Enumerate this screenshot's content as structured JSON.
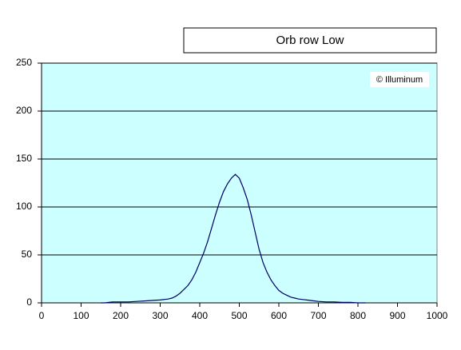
{
  "chart_data": {
    "type": "line",
    "title": "Orb row Low",
    "annotation": "© Illuminum",
    "x": [
      150,
      160,
      170,
      180,
      200,
      220,
      240,
      260,
      280,
      300,
      320,
      330,
      340,
      350,
      360,
      370,
      380,
      390,
      400,
      410,
      420,
      430,
      440,
      450,
      460,
      470,
      480,
      490,
      500,
      510,
      520,
      530,
      540,
      550,
      560,
      570,
      580,
      590,
      600,
      610,
      620,
      630,
      640,
      650,
      660,
      670,
      680,
      690,
      700,
      720,
      740,
      760,
      780,
      800,
      820
    ],
    "values": [
      0,
      0,
      0.5,
      1,
      1,
      1,
      1.5,
      2,
      2.5,
      3,
      4,
      5,
      7,
      10,
      14,
      18,
      24,
      32,
      42,
      52,
      64,
      78,
      92,
      105,
      116,
      124,
      130,
      134,
      130,
      120,
      108,
      92,
      74,
      56,
      42,
      32,
      24,
      18,
      13,
      10,
      8,
      6,
      5,
      4,
      3.5,
      3,
      2.5,
      2,
      1.5,
      1,
      1,
      0.5,
      0.5,
      0,
      0
    ],
    "color": "#000066",
    "background": "#ccffff",
    "grid": true,
    "xlim": [
      0,
      1000
    ],
    "xticks": [
      0,
      100,
      200,
      300,
      400,
      500,
      600,
      700,
      800,
      900,
      1000
    ],
    "ylim": [
      0,
      250
    ],
    "yticks": [
      0,
      50,
      100,
      150,
      200,
      250
    ]
  }
}
